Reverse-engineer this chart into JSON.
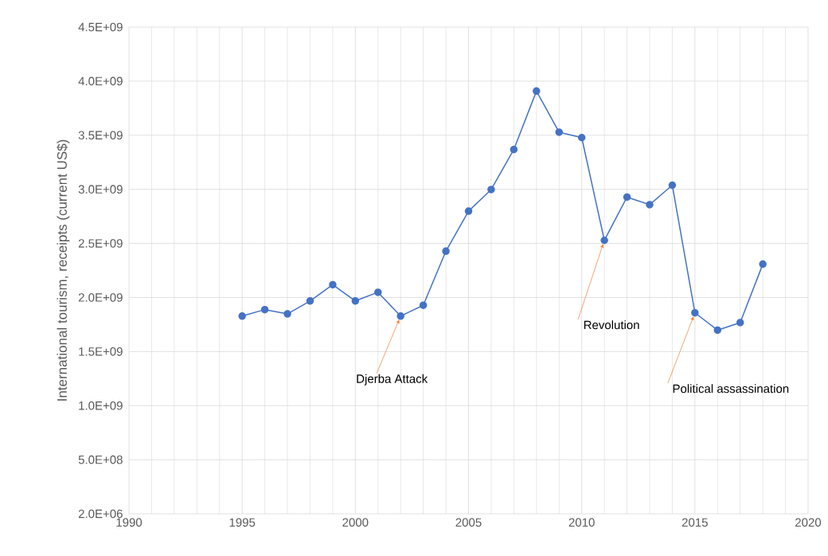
{
  "chart_data": {
    "type": "line",
    "ylabel": "International tourism, receipts (current US$)",
    "x": [
      1995,
      1996,
      1997,
      1998,
      1999,
      2000,
      2001,
      2002,
      2003,
      2004,
      2005,
      2006,
      2007,
      2008,
      2009,
      2010,
      2011,
      2012,
      2013,
      2014,
      2015,
      2016,
      2017,
      2018
    ],
    "series": [
      {
        "color": "#4472c4",
        "values": [
          1830000000.0,
          1890000000.0,
          1850000000.0,
          1970000000.0,
          2120000000.0,
          1970000000.0,
          2050000000.0,
          1830000000.0,
          1930000000.0,
          2430000000.0,
          2800000000.0,
          3000000000.0,
          3370000000.0,
          3910000000.0,
          3530000000.0,
          3480000000.0,
          2530000000.0,
          2930000000.0,
          2860000000.0,
          3040000000.0,
          1860000000.0,
          1700000000.0,
          1770000000.0,
          2310000000.0
        ]
      }
    ],
    "xlim": [
      1990,
      2020
    ],
    "xticks": [
      1990,
      1995,
      2000,
      2005,
      2010,
      2015,
      2020
    ],
    "ylim": [
      2000000,
      4502000000
    ],
    "yticks": [
      {
        "value": 2000000,
        "label": "2.0E+06"
      },
      {
        "value": 502000000,
        "label": "5.0E+08"
      },
      {
        "value": 1002000000,
        "label": "1.0E+09"
      },
      {
        "value": 1502000000,
        "label": "1.5E+09"
      },
      {
        "value": 2002000000,
        "label": "2.0E+09"
      },
      {
        "value": 2502000000,
        "label": "2.5E+09"
      },
      {
        "value": 3002000000,
        "label": "3.0E+09"
      },
      {
        "value": 3502000000,
        "label": "3.5E+09"
      },
      {
        "value": 4002000000,
        "label": "4.0E+09"
      },
      {
        "value": 4502000000,
        "label": "4.5E+09"
      }
    ],
    "annotations": [
      {
        "text": "Djerba Attack",
        "x": 2002,
        "y": 1830000000.0
      },
      {
        "text": "Revolution",
        "x": 2011,
        "y": 2530000000.0
      },
      {
        "text": "Political assassination",
        "x": 2015,
        "y": 1860000000.0
      }
    ],
    "grid": true,
    "marker": "circle",
    "line_style": "solid"
  }
}
